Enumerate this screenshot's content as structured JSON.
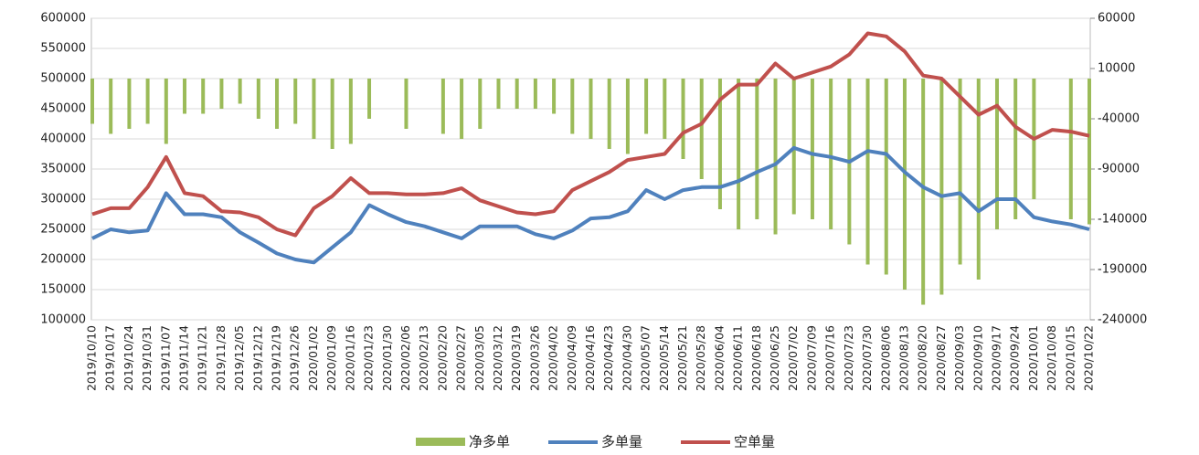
{
  "chart_data": {
    "type": "bar-line",
    "categories": [
      "2019/10/10",
      "2019/10/17",
      "2019/10/24",
      "2019/10/31",
      "2019/11/07",
      "2019/11/14",
      "2019/11/21",
      "2019/11/28",
      "2019/12/05",
      "2019/12/12",
      "2019/12/19",
      "2019/12/26",
      "2020/01/02",
      "2020/01/09",
      "2020/01/16",
      "2020/01/23",
      "2020/01/30",
      "2020/02/06",
      "2020/02/13",
      "2020/02/20",
      "2020/02/27",
      "2020/03/05",
      "2020/03/12",
      "2020/03/19",
      "2020/03/26",
      "2020/04/02",
      "2020/04/09",
      "2020/04/16",
      "2020/04/23",
      "2020/04/30",
      "2020/05/07",
      "2020/05/14",
      "2020/05/21",
      "2020/05/28",
      "2020/06/04",
      "2020/06/11",
      "2020/06/18",
      "2020/06/25",
      "2020/07/02",
      "2020/07/09",
      "2020/07/16",
      "2020/07/23",
      "2020/07/30",
      "2020/08/06",
      "2020/08/13",
      "2020/08/20",
      "2020/08/27",
      "2020/09/03",
      "2020/09/10",
      "2020/09/17",
      "2020/09/24",
      "2020/10/01",
      "2020/10/08",
      "2020/10/15",
      "2020/10/22"
    ],
    "series": [
      {
        "name": "净多单",
        "type": "bar",
        "axis": "y2",
        "color": "#9bbb59",
        "values": [
          -45000,
          -55000,
          -50000,
          -45000,
          -65000,
          -35000,
          -35000,
          -30000,
          -25000,
          -40000,
          -50000,
          -45000,
          -60000,
          -70000,
          -65000,
          -40000,
          null,
          -50000,
          null,
          -55000,
          -60000,
          -50000,
          -30000,
          -30000,
          -30000,
          -35000,
          -55000,
          -60000,
          -70000,
          -75000,
          -55000,
          -60000,
          -80000,
          -100000,
          -130000,
          -150000,
          -140000,
          -155000,
          -135000,
          -140000,
          -150000,
          -165000,
          -185000,
          -195000,
          -210000,
          -225000,
          -215000,
          -185000,
          -200000,
          -150000,
          -140000,
          -120000,
          null,
          -140000,
          -145000
        ]
      },
      {
        "name": "多单量",
        "type": "line",
        "color": "#4f81bd",
        "values": [
          235000,
          250000,
          245000,
          248000,
          310000,
          275000,
          275000,
          270000,
          245000,
          228000,
          210000,
          200000,
          195000,
          220000,
          245000,
          290000,
          275000,
          262000,
          255000,
          245000,
          235000,
          255000,
          255000,
          255000,
          242000,
          235000,
          248000,
          268000,
          270000,
          280000,
          315000,
          300000,
          315000,
          320000,
          320000,
          330000,
          345000,
          358000,
          385000,
          375000,
          370000,
          362000,
          380000,
          375000,
          345000,
          320000,
          305000,
          310000,
          280000,
          300000,
          300000,
          270000,
          263000,
          258000,
          250000
        ]
      },
      {
        "name": "空单量",
        "type": "line",
        "color": "#c0504d",
        "values": [
          275000,
          285000,
          285000,
          320000,
          370000,
          310000,
          305000,
          280000,
          278000,
          270000,
          250000,
          240000,
          285000,
          305000,
          335000,
          310000,
          310000,
          308000,
          308000,
          310000,
          318000,
          298000,
          288000,
          278000,
          275000,
          280000,
          315000,
          330000,
          345000,
          365000,
          370000,
          375000,
          410000,
          425000,
          465000,
          490000,
          490000,
          525000,
          500000,
          510000,
          520000,
          540000,
          575000,
          570000,
          545000,
          505000,
          500000,
          470000,
          440000,
          455000,
          420000,
          400000,
          415000,
          412000,
          405000
        ]
      }
    ],
    "ylim": [
      100000,
      600000
    ],
    "yticks": [
      100000,
      150000,
      200000,
      250000,
      300000,
      350000,
      400000,
      450000,
      500000,
      550000,
      600000
    ],
    "y2lim": [
      -240000,
      60000
    ],
    "y2ticks": [
      -240000,
      -190000,
      -140000,
      -90000,
      -40000,
      10000,
      60000
    ],
    "grid": true
  }
}
